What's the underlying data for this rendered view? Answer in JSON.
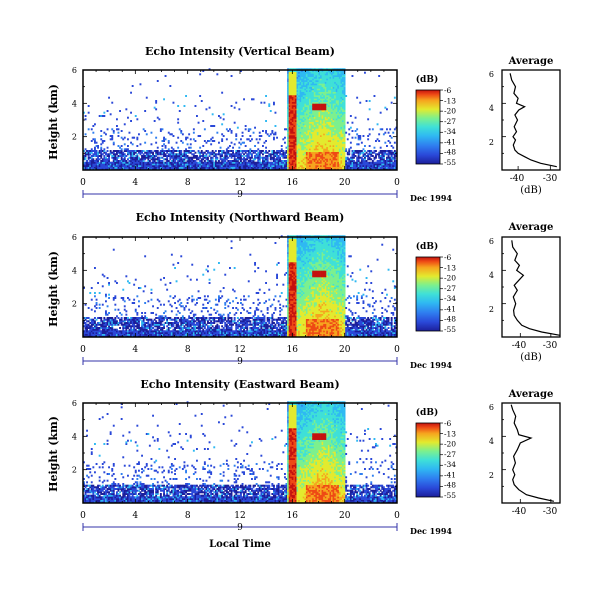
{
  "colorbar_unit": "(dB)",
  "colorbar_ticks": [
    "-6",
    "-13",
    "-20",
    "-27",
    "-34",
    "-41",
    "-48",
    "-55"
  ],
  "colors": {
    "palette": [
      "#1c1f9a",
      "#2a48d8",
      "#2f7ff0",
      "#2fb9f2",
      "#3fe0d8",
      "#7cf08e",
      "#e3ea2e",
      "#f6a41e",
      "#ee4a15",
      "#c4120f"
    ],
    "frame": "#000000",
    "date_axis": "#3333aa"
  },
  "xaxis": {
    "ticks": [
      "0",
      "4",
      "8",
      "12",
      "16",
      "20",
      "0"
    ],
    "day_label": "9",
    "date_label": "Dec 1994",
    "label": "Local Time"
  },
  "yaxis_label": "Height (km)",
  "avg_title": "Average",
  "avg_xlabel": "(dB)",
  "chart_data": [
    {
      "type": "heatmap",
      "title": "Echo Intensity (Vertical Beam)",
      "x_unit": "hour",
      "xlim": [
        0,
        24
      ],
      "ylim": [
        0,
        6
      ],
      "yticks": [
        2,
        4,
        6
      ],
      "colorbar_range_db": [
        -55,
        -6
      ],
      "features": {
        "background_layer_top_km": 1.2,
        "intense_column_hours": [
          15.7,
          16.3
        ],
        "broad_echo_hours": [
          15.5,
          20.0
        ],
        "bright_band_hour": 18.0,
        "bright_band_km": 3.8
      },
      "average_profile": {
        "type": "line",
        "xlim": [
          -45,
          -27
        ],
        "xticks": [
          -40,
          -30
        ],
        "ylim": [
          0,
          6
        ],
        "yticks": [
          2,
          4,
          6
        ],
        "height_km": [
          0.2,
          0.4,
          0.6,
          0.8,
          1.0,
          1.2,
          1.5,
          1.8,
          2.0,
          2.3,
          2.6,
          3.0,
          3.3,
          3.6,
          3.8,
          4.0,
          4.3,
          4.6,
          5.0,
          5.4,
          5.8
        ],
        "db": [
          -28,
          -33,
          -36,
          -38,
          -40,
          -41,
          -41.5,
          -40.8,
          -41.6,
          -40.5,
          -41.2,
          -40.2,
          -41.0,
          -39.8,
          -38.0,
          -40.5,
          -40.0,
          -41.3,
          -40.8,
          -42.0,
          -42.5
        ]
      }
    },
    {
      "type": "heatmap",
      "title": "Echo Intensity (Northward Beam)",
      "x_unit": "hour",
      "xlim": [
        0,
        24
      ],
      "ylim": [
        0,
        6
      ],
      "yticks": [
        2,
        4,
        6
      ],
      "colorbar_range_db": [
        -55,
        -6
      ],
      "features": {
        "background_layer_top_km": 1.1,
        "intense_column_hours": [
          15.7,
          16.3
        ],
        "broad_echo_hours": [
          15.5,
          20.0
        ],
        "bright_band_hour": 18.0,
        "bright_band_km": 3.8
      },
      "average_profile": {
        "type": "line",
        "xlim": [
          -46,
          -27
        ],
        "xticks": [
          -40,
          -30
        ],
        "ylim": [
          0,
          6
        ],
        "yticks": [
          2,
          4,
          6
        ],
        "height_km": [
          0.1,
          0.3,
          0.5,
          0.7,
          1.0,
          1.3,
          1.6,
          2.0,
          2.4,
          2.8,
          3.1,
          3.4,
          3.7,
          4.0,
          4.3,
          4.6,
          5.0,
          5.4,
          5.8
        ],
        "db": [
          -27,
          -33,
          -37,
          -39.5,
          -41,
          -42,
          -42.2,
          -41.5,
          -42.3,
          -41.0,
          -42.0,
          -40.5,
          -39.0,
          -41.2,
          -40.3,
          -41.8,
          -41.0,
          -42.5,
          -42.8
        ]
      }
    },
    {
      "type": "heatmap",
      "title": "Echo Intensity (Eastward Beam)",
      "x_unit": "hour",
      "xlim": [
        0,
        24
      ],
      "ylim": [
        0,
        6
      ],
      "yticks": [
        2,
        4,
        6
      ],
      "colorbar_range_db": [
        -55,
        -6
      ],
      "features": {
        "background_layer_top_km": 1.0,
        "intense_column_hours": [
          15.7,
          16.3
        ],
        "broad_echo_hours": [
          15.5,
          20.0
        ],
        "bright_band_hour": 18.0,
        "bright_band_km": 4.0
      },
      "average_profile": {
        "type": "line",
        "xlim": [
          -46,
          -27
        ],
        "xticks": [
          -40,
          -30
        ],
        "ylim": [
          0,
          6
        ],
        "yticks": [
          2,
          4,
          6
        ],
        "height_km": [
          0.1,
          0.3,
          0.5,
          0.8,
          1.1,
          1.4,
          1.7,
          2.0,
          2.4,
          2.8,
          3.2,
          3.6,
          3.9,
          4.1,
          4.4,
          4.8,
          5.2,
          5.6,
          5.9
        ],
        "db": [
          -29,
          -34,
          -38,
          -40.5,
          -42,
          -42.5,
          -41.8,
          -42.5,
          -41.6,
          -42.2,
          -41.0,
          -40.0,
          -36.5,
          -40.5,
          -41.0,
          -42.0,
          -41.5,
          -42.5,
          -43.0
        ]
      }
    }
  ]
}
